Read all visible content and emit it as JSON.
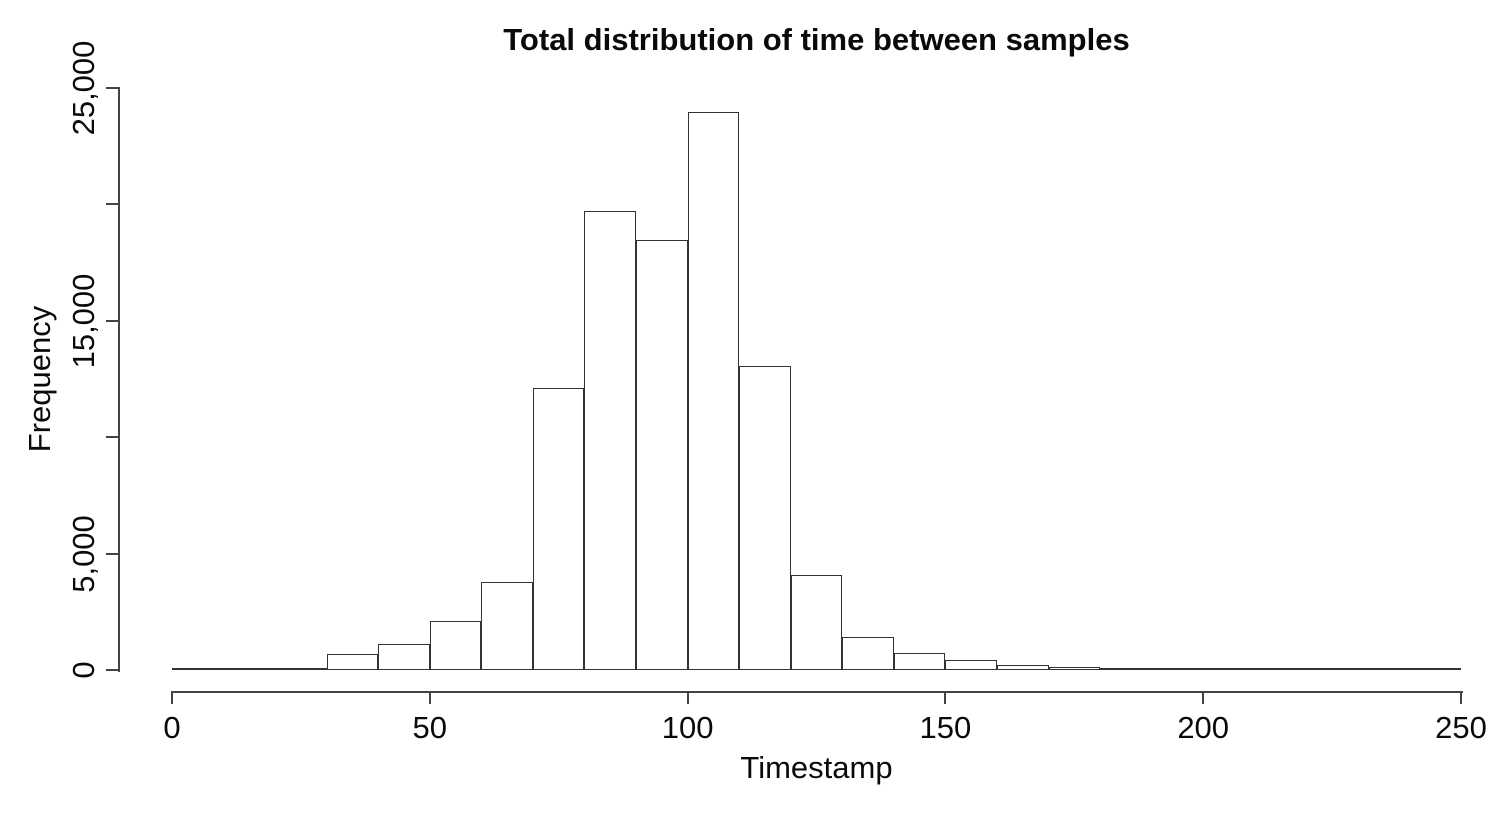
{
  "page": {
    "background": "#ffffff"
  },
  "chart_data": {
    "type": "bar",
    "subtype": "histogram",
    "title": "Total distribution of time between samples",
    "xlabel": "Timestamp",
    "ylabel": "Frequency",
    "xlim": [
      0,
      250
    ],
    "ylim": [
      0,
      25000
    ],
    "bin_width": 10,
    "bin_starts": [
      0,
      10,
      20,
      30,
      40,
      50,
      60,
      70,
      80,
      90,
      100,
      110,
      120,
      130,
      140,
      150,
      160,
      170,
      180,
      190,
      200,
      210,
      220,
      230,
      240
    ],
    "counts": [
      10,
      15,
      25,
      700,
      1100,
      2100,
      3800,
      12100,
      19700,
      18450,
      23950,
      13050,
      4080,
      1430,
      720,
      430,
      220,
      120,
      70,
      60,
      50,
      40,
      25,
      15,
      10
    ],
    "xticks": {
      "values": [
        0,
        50,
        100,
        150,
        200,
        250
      ],
      "labels": [
        "0",
        "50",
        "100",
        "150",
        "200",
        "250"
      ]
    },
    "yticks": {
      "values": [
        0,
        5000,
        10000,
        15000,
        20000,
        25000
      ],
      "labels": [
        "0",
        "5,000",
        "",
        "15,000",
        "",
        "25,000"
      ]
    },
    "grid": false,
    "legend": false,
    "colors": {
      "bar_fill": "#ffffff",
      "bar_border": "#333333",
      "axis": "#444444",
      "text": "#0a0a0a",
      "background": "#ffffff"
    }
  }
}
